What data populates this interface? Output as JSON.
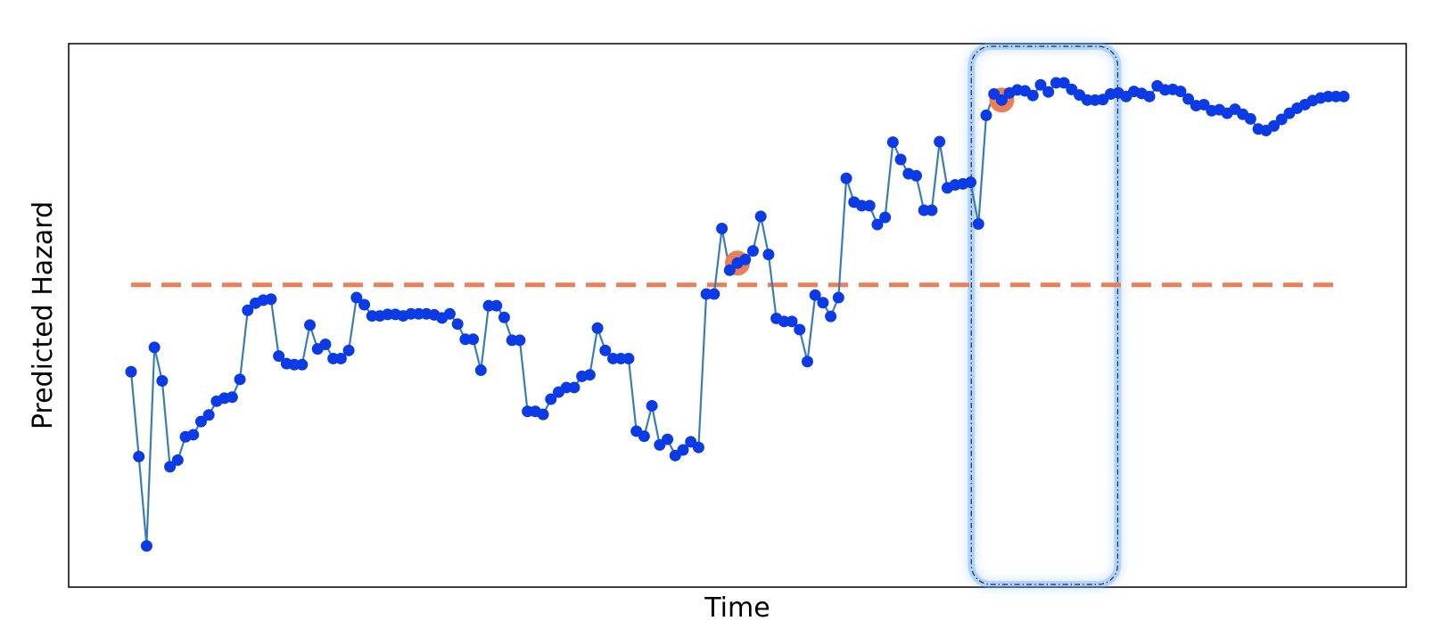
{
  "chart_data": {
    "type": "line",
    "title": "",
    "xlabel": "Time",
    "ylabel": "Predicted Hazard",
    "x_ticks_shown": false,
    "y_ticks_shown": false,
    "grid": false,
    "ylim": [
      0,
      1
    ],
    "series": [
      {
        "style": "line-with-markers",
        "line_color": "#3a7db5",
        "marker_color": "#0b3be6",
        "x": [
          0,
          1,
          2,
          3,
          4,
          5,
          6,
          7,
          8,
          9,
          10,
          11,
          12,
          13,
          14,
          15,
          16,
          17,
          18,
          19,
          20,
          21,
          22,
          23,
          24,
          25,
          26,
          27,
          28,
          29,
          30,
          31,
          32,
          33,
          34,
          35,
          36,
          37,
          38,
          39,
          40,
          41,
          42,
          43,
          44,
          45,
          46,
          47,
          48,
          49,
          50,
          51,
          52,
          53,
          54,
          55,
          56,
          57,
          58,
          59,
          60,
          61,
          62,
          63,
          64,
          65,
          66,
          67,
          68,
          69,
          70,
          71,
          72,
          73,
          74,
          75,
          76,
          77,
          78,
          79,
          80,
          81,
          82,
          83,
          84,
          85,
          86,
          87,
          88,
          89,
          90,
          91,
          92,
          93,
          94,
          95,
          96,
          97,
          98,
          99,
          100,
          101,
          102,
          103,
          104,
          105,
          106,
          107,
          108,
          109,
          110,
          111,
          112,
          113,
          114,
          115,
          116,
          117,
          118,
          119,
          120,
          121,
          122,
          123,
          124,
          125,
          126,
          127,
          128,
          129,
          130,
          131,
          132,
          133,
          134,
          135,
          136,
          137,
          138,
          139,
          140,
          141,
          142,
          143,
          144,
          145,
          146,
          147,
          148,
          149,
          150,
          151,
          152,
          153,
          154,
          155,
          156
        ],
        "y": [
          0.389,
          0.222,
          0.046,
          0.437,
          0.371,
          0.202,
          0.215,
          0.261,
          0.265,
          0.291,
          0.304,
          0.331,
          0.337,
          0.339,
          0.374,
          0.51,
          0.524,
          0.53,
          0.532,
          0.42,
          0.405,
          0.403,
          0.403,
          0.481,
          0.434,
          0.443,
          0.415,
          0.415,
          0.431,
          0.535,
          0.521,
          0.499,
          0.499,
          0.502,
          0.502,
          0.499,
          0.503,
          0.503,
          0.503,
          0.501,
          0.495,
          0.503,
          0.483,
          0.453,
          0.453,
          0.392,
          0.519,
          0.519,
          0.496,
          0.451,
          0.451,
          0.311,
          0.311,
          0.305,
          0.335,
          0.349,
          0.358,
          0.358,
          0.38,
          0.383,
          0.475,
          0.431,
          0.415,
          0.415,
          0.415,
          0.272,
          0.262,
          0.322,
          0.245,
          0.256,
          0.224,
          0.235,
          0.251,
          0.24,
          0.542,
          0.542,
          0.671,
          0.589,
          0.603,
          0.61,
          0.627,
          0.695,
          0.62,
          0.494,
          0.488,
          0.488,
          0.472,
          0.409,
          0.54,
          0.525,
          0.498,
          0.535,
          0.77,
          0.723,
          0.716,
          0.716,
          0.679,
          0.693,
          0.841,
          0.807,
          0.779,
          0.775,
          0.707,
          0.707,
          0.842,
          0.751,
          0.757,
          0.759,
          0.762,
          0.68,
          0.894,
          0.936,
          0.924,
          0.938,
          0.944,
          0.942,
          0.933,
          0.954,
          0.94,
          0.958,
          0.958,
          0.945,
          0.934,
          0.924,
          0.924,
          0.925,
          0.936,
          0.938,
          0.931,
          0.941,
          0.937,
          0.931,
          0.952,
          0.944,
          0.945,
          0.941,
          0.926,
          0.913,
          0.915,
          0.903,
          0.905,
          0.898,
          0.906,
          0.896,
          0.887,
          0.867,
          0.864,
          0.873,
          0.886,
          0.898,
          0.908,
          0.915,
          0.923,
          0.928,
          0.931,
          0.931,
          0.931
        ]
      }
    ],
    "threshold": {
      "y": 0.56,
      "style": "dashed",
      "color": "#ec7f55"
    },
    "highlighted_points": [
      {
        "index": 78,
        "color": "#ec7f55"
      },
      {
        "index": 112,
        "color": "#ec7f55"
      }
    ],
    "highlight_region": {
      "x_start": 109,
      "x_end": 126,
      "color": "#5aa0f5",
      "style": "dash-dot-outline-with-glow"
    }
  }
}
